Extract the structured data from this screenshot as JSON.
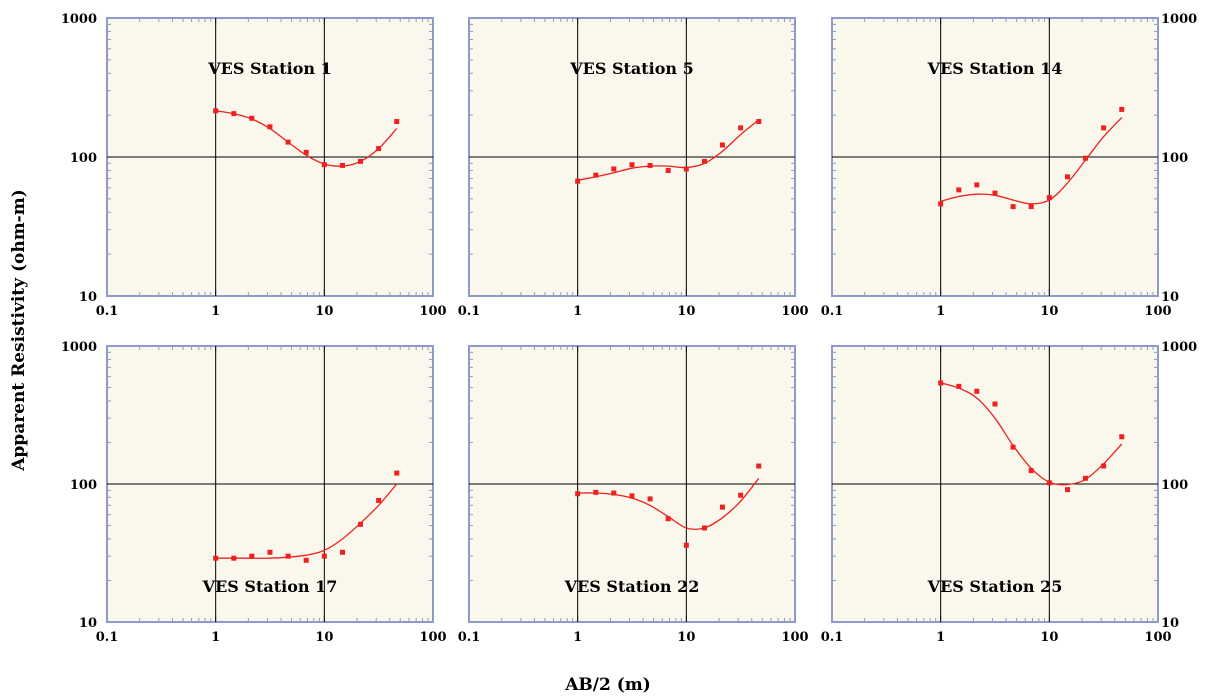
{
  "xlabel": "AB/2 (m)",
  "ylabel": "Apparent Resistivity (ohm-m)",
  "chart_data": [
    {
      "type": "scatter",
      "title": "VES Station 1",
      "xscale": "log",
      "yscale": "log",
      "xlim": [
        0.1,
        100
      ],
      "ylim": [
        10,
        1000
      ],
      "xticks": [
        "0.1",
        "1",
        "10",
        "100"
      ],
      "yticks": [
        "10",
        "100",
        "1000"
      ],
      "title_position": "top",
      "series": [
        {
          "kind": "points",
          "x": [
            1,
            1.47,
            2.15,
            3.16,
            4.64,
            6.81,
            10,
            14.7,
            21.5,
            31.6,
            46.4
          ],
          "y": [
            215,
            205,
            190,
            165,
            128,
            108,
            88,
            87,
            93,
            115,
            180
          ]
        },
        {
          "kind": "fit",
          "x": [
            1,
            1.47,
            2.15,
            3.16,
            4.64,
            6.81,
            10,
            14.7,
            21.5,
            31.6,
            46.4
          ],
          "y": [
            215,
            205,
            188,
            160,
            128,
            103,
            89,
            86,
            93,
            115,
            160
          ]
        }
      ]
    },
    {
      "type": "scatter",
      "title": "VES Station 5",
      "xscale": "log",
      "yscale": "log",
      "xlim": [
        0.1,
        100
      ],
      "ylim": [
        10,
        1000
      ],
      "xticks": [
        "0.1",
        "1",
        "10",
        "100"
      ],
      "yticks": [],
      "title_position": "top",
      "series": [
        {
          "kind": "points",
          "x": [
            1,
            1.47,
            2.15,
            3.16,
            4.64,
            6.81,
            10,
            14.7,
            21.5,
            31.6,
            46.4
          ],
          "y": [
            67,
            74,
            82,
            88,
            87,
            80,
            82,
            93,
            122,
            162,
            180
          ]
        },
        {
          "kind": "fit",
          "x": [
            1,
            1.47,
            2.15,
            3.16,
            4.64,
            6.81,
            10,
            14.7,
            21.5,
            31.6,
            46.4
          ],
          "y": [
            68,
            72,
            77,
            83,
            86,
            86,
            84,
            90,
            110,
            145,
            185
          ]
        }
      ]
    },
    {
      "type": "scatter",
      "title": "VES Station 14",
      "xscale": "log",
      "yscale": "log",
      "xlim": [
        0.1,
        100
      ],
      "ylim": [
        10,
        1000
      ],
      "xticks": [
        "0.1",
        "1",
        "10",
        "100"
      ],
      "yticks": [
        "10",
        "100",
        "1000"
      ],
      "title_position": "top",
      "series": [
        {
          "kind": "points",
          "x": [
            1,
            1.47,
            2.15,
            3.16,
            4.64,
            6.81,
            10,
            14.7,
            21.5,
            31.6,
            46.4
          ],
          "y": [
            46,
            58,
            63,
            55,
            44,
            44,
            51,
            72,
            98,
            162,
            220
          ]
        },
        {
          "kind": "fit",
          "x": [
            1,
            1.47,
            2.15,
            3.16,
            4.64,
            6.81,
            10,
            14.7,
            21.5,
            31.6,
            46.4
          ],
          "y": [
            48,
            52,
            54,
            53,
            49,
            46,
            49,
            65,
            95,
            140,
            192
          ]
        }
      ]
    },
    {
      "type": "scatter",
      "title": "VES Station 17",
      "xscale": "log",
      "yscale": "log",
      "xlim": [
        0.1,
        100
      ],
      "ylim": [
        10,
        1000
      ],
      "xticks": [
        "0.1",
        "1",
        "10",
        "100"
      ],
      "yticks": [
        "10",
        "100",
        "1000"
      ],
      "title_position": "bottom",
      "series": [
        {
          "kind": "points",
          "x": [
            1,
            1.47,
            2.15,
            3.16,
            4.64,
            6.81,
            10,
            14.7,
            21.5,
            31.6,
            46.4
          ],
          "y": [
            29,
            29,
            30,
            32,
            30,
            28,
            30,
            32,
            51,
            76,
            120
          ]
        },
        {
          "kind": "fit",
          "x": [
            1,
            1.47,
            2.15,
            3.16,
            4.64,
            6.81,
            10,
            14.7,
            21.5,
            31.6,
            46.4
          ],
          "y": [
            29,
            29,
            29,
            29,
            29.5,
            30.5,
            33,
            40,
            52,
            70,
            100
          ]
        }
      ]
    },
    {
      "type": "scatter",
      "title": "VES Station 22",
      "xscale": "log",
      "yscale": "log",
      "xlim": [
        0.1,
        100
      ],
      "ylim": [
        10,
        1000
      ],
      "xticks": [
        "0.1",
        "1",
        "10",
        "100"
      ],
      "yticks": [],
      "title_position": "bottom",
      "series": [
        {
          "kind": "points",
          "x": [
            1,
            1.47,
            2.15,
            3.16,
            4.64,
            6.81,
            10,
            14.7,
            21.5,
            31.6,
            46.4
          ],
          "y": [
            85,
            87,
            86,
            82,
            78,
            56,
            36,
            48,
            68,
            83,
            135
          ]
        },
        {
          "kind": "fit",
          "x": [
            1,
            1.47,
            2.15,
            3.16,
            4.64,
            6.81,
            10,
            14.7,
            21.5,
            31.6,
            46.4
          ],
          "y": [
            86,
            86,
            84,
            79,
            70,
            58,
            48,
            48,
            57,
            75,
            110
          ]
        }
      ]
    },
    {
      "type": "scatter",
      "title": "VES Station 25",
      "xscale": "log",
      "yscale": "log",
      "xlim": [
        0.1,
        100
      ],
      "ylim": [
        10,
        1000
      ],
      "xticks": [
        "0.1",
        "1",
        "10",
        "100"
      ],
      "yticks": [
        "10",
        "100",
        "1000"
      ],
      "title_position": "bottom",
      "series": [
        {
          "kind": "points",
          "x": [
            1,
            1.47,
            2.15,
            3.16,
            4.64,
            6.81,
            10,
            14.7,
            21.5,
            31.6,
            46.4
          ],
          "y": [
            540,
            510,
            470,
            380,
            185,
            125,
            102,
            91,
            110,
            135,
            220
          ]
        },
        {
          "kind": "fit",
          "x": [
            1,
            1.47,
            2.15,
            3.16,
            4.64,
            6.81,
            10,
            14.7,
            21.5,
            31.6,
            46.4
          ],
          "y": [
            540,
            495,
            420,
            300,
            190,
            130,
            103,
            99,
            108,
            140,
            195
          ]
        }
      ]
    }
  ],
  "colors": {
    "plot_background": "#faf8ec",
    "frame": "#8e9bc8",
    "grid": "#000000",
    "data": "#ee2020"
  }
}
